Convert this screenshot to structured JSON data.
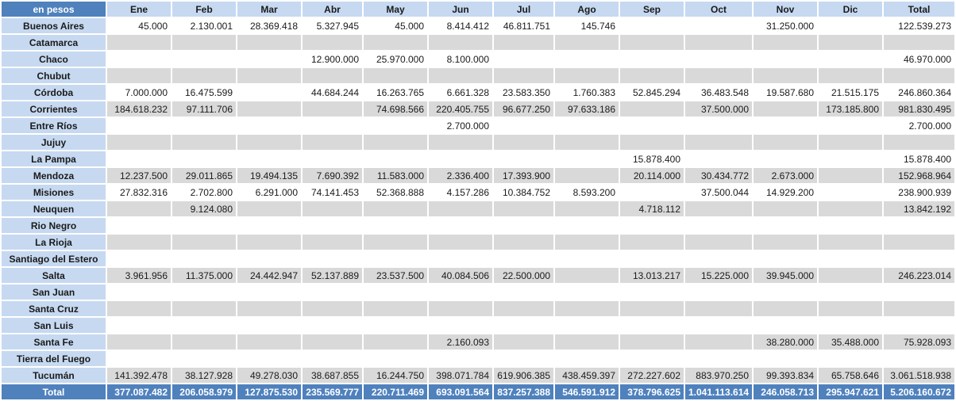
{
  "header": {
    "corner": "en pesos",
    "months": [
      "Ene",
      "Feb",
      "Mar",
      "Abr",
      "May",
      "Jun",
      "Jul",
      "Ago",
      "Sep",
      "Oct",
      "Nov",
      "Dic",
      "Total"
    ]
  },
  "rows": [
    {
      "province": "Buenos Aires",
      "values": [
        "45.000",
        "2.130.001",
        "28.369.418",
        "5.327.945",
        "45.000",
        "8.414.412",
        "46.811.751",
        "145.746",
        "",
        "",
        "31.250.000",
        "",
        "122.539.273"
      ]
    },
    {
      "province": "Catamarca",
      "values": [
        "",
        "",
        "",
        "",
        "",
        "",
        "",
        "",
        "",
        "",
        "",
        "",
        ""
      ]
    },
    {
      "province": "Chaco",
      "values": [
        "",
        "",
        "",
        "12.900.000",
        "25.970.000",
        "8.100.000",
        "",
        "",
        "",
        "",
        "",
        "",
        "46.970.000"
      ]
    },
    {
      "province": "Chubut",
      "values": [
        "",
        "",
        "",
        "",
        "",
        "",
        "",
        "",
        "",
        "",
        "",
        "",
        ""
      ]
    },
    {
      "province": "Córdoba",
      "values": [
        "7.000.000",
        "16.475.599",
        "",
        "44.684.244",
        "16.263.765",
        "6.661.328",
        "23.583.350",
        "1.760.383",
        "52.845.294",
        "36.483.548",
        "19.587.680",
        "21.515.175",
        "246.860.364"
      ]
    },
    {
      "province": "Corrientes",
      "values": [
        "184.618.232",
        "97.111.706",
        "",
        "",
        "74.698.566",
        "220.405.755",
        "96.677.250",
        "97.633.186",
        "",
        "37.500.000",
        "",
        "173.185.800",
        "981.830.495"
      ]
    },
    {
      "province": "Entre Ríos",
      "values": [
        "",
        "",
        "",
        "",
        "",
        "2.700.000",
        "",
        "",
        "",
        "",
        "",
        "",
        "2.700.000"
      ]
    },
    {
      "province": "Jujuy",
      "values": [
        "",
        "",
        "",
        "",
        "",
        "",
        "",
        "",
        "",
        "",
        "",
        "",
        ""
      ]
    },
    {
      "province": "La Pampa",
      "values": [
        "",
        "",
        "",
        "",
        "",
        "",
        "",
        "",
        "15.878.400",
        "",
        "",
        "",
        "15.878.400"
      ]
    },
    {
      "province": "Mendoza",
      "values": [
        "12.237.500",
        "29.011.865",
        "19.494.135",
        "7.690.392",
        "11.583.000",
        "2.336.400",
        "17.393.900",
        "",
        "20.114.000",
        "30.434.772",
        "2.673.000",
        "",
        "152.968.964"
      ]
    },
    {
      "province": "Misiones",
      "values": [
        "27.832.316",
        "2.702.800",
        "6.291.000",
        "74.141.453",
        "52.368.888",
        "4.157.286",
        "10.384.752",
        "8.593.200",
        "",
        "37.500.044",
        "14.929.200",
        "",
        "238.900.939"
      ]
    },
    {
      "province": "Neuquen",
      "values": [
        "",
        "9.124.080",
        "",
        "",
        "",
        "",
        "",
        "",
        "4.718.112",
        "",
        "",
        "",
        "13.842.192"
      ]
    },
    {
      "province": "Rio Negro",
      "values": [
        "",
        "",
        "",
        "",
        "",
        "",
        "",
        "",
        "",
        "",
        "",
        "",
        ""
      ]
    },
    {
      "province": "La Rioja",
      "values": [
        "",
        "",
        "",
        "",
        "",
        "",
        "",
        "",
        "",
        "",
        "",
        "",
        ""
      ]
    },
    {
      "province": "Santiago del Estero",
      "values": [
        "",
        "",
        "",
        "",
        "",
        "",
        "",
        "",
        "",
        "",
        "",
        "",
        ""
      ]
    },
    {
      "province": "Salta",
      "values": [
        "3.961.956",
        "11.375.000",
        "24.442.947",
        "52.137.889",
        "23.537.500",
        "40.084.506",
        "22.500.000",
        "",
        "13.013.217",
        "15.225.000",
        "39.945.000",
        "",
        "246.223.014"
      ]
    },
    {
      "province": "San Juan",
      "values": [
        "",
        "",
        "",
        "",
        "",
        "",
        "",
        "",
        "",
        "",
        "",
        "",
        ""
      ]
    },
    {
      "province": "Santa Cruz",
      "values": [
        "",
        "",
        "",
        "",
        "",
        "",
        "",
        "",
        "",
        "",
        "",
        "",
        ""
      ]
    },
    {
      "province": "San Luis",
      "values": [
        "",
        "",
        "",
        "",
        "",
        "",
        "",
        "",
        "",
        "",
        "",
        "",
        ""
      ]
    },
    {
      "province": "Santa Fe",
      "values": [
        "",
        "",
        "",
        "",
        "",
        "2.160.093",
        "",
        "",
        "",
        "",
        "38.280.000",
        "35.488.000",
        "75.928.093"
      ]
    },
    {
      "province": "Tierra del Fuego",
      "values": [
        "",
        "",
        "",
        "",
        "",
        "",
        "",
        "",
        "",
        "",
        "",
        "",
        ""
      ]
    },
    {
      "province": "Tucumán",
      "values": [
        "141.392.478",
        "38.127.928",
        "49.278.030",
        "38.687.855",
        "16.244.750",
        "398.071.784",
        "619.906.385",
        "438.459.397",
        "272.227.602",
        "883.970.250",
        "99.393.834",
        "65.758.646",
        "3.061.518.938"
      ]
    }
  ],
  "totals": {
    "label": "Total",
    "values": [
      "377.087.482",
      "206.058.979",
      "127.875.530",
      "235.569.777",
      "220.711.469",
      "693.091.564",
      "837.257.388",
      "546.591.912",
      "378.796.625",
      "1.041.113.614",
      "246.058.713",
      "295.947.621",
      "5.206.160.672"
    ]
  },
  "colors": {
    "header_bg": "#c6d9f1",
    "corner_bg": "#4f81bd",
    "total_bg": "#4f81bd",
    "stripe_bg": "#d9d9d9"
  }
}
